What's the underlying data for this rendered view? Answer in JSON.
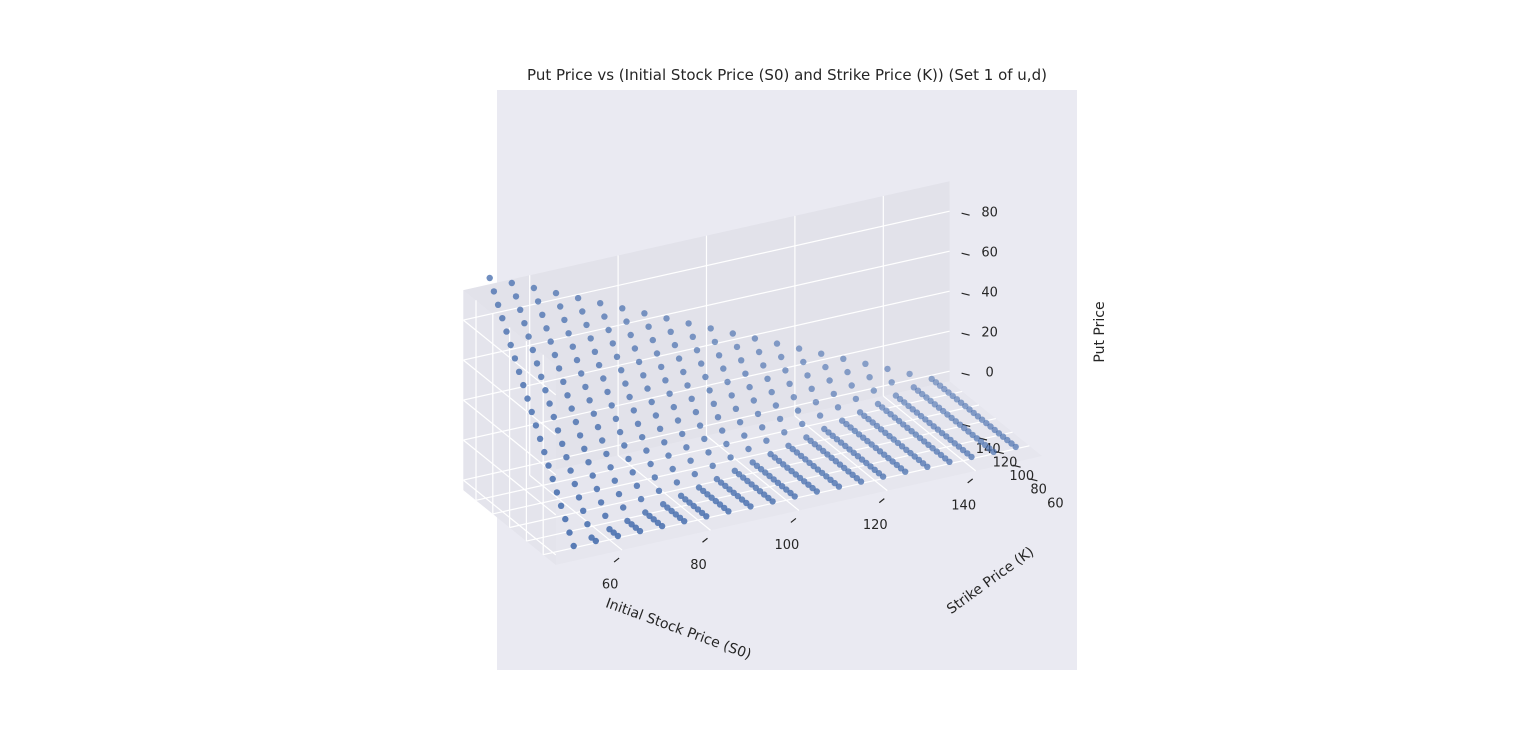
{
  "chart_data": {
    "type": "scatter",
    "title": "Put Price vs (Initial Stock Price (S0) and Strike Price (K)) (Set 1 of u,d)",
    "xlabel": "Initial Stock Price (S0)",
    "ylabel": "Strike Price (K)",
    "zlabel": "Put Price",
    "x_ticks": [
      "60",
      "80",
      "100",
      "120",
      "140"
    ],
    "y_ticks": [
      "60",
      "80",
      "100",
      "120",
      "140"
    ],
    "z_ticks": [
      "0",
      "20",
      "40",
      "60",
      "80"
    ],
    "x_values": [
      50,
      55,
      60,
      65,
      70,
      75,
      80,
      85,
      90,
      95,
      100,
      105,
      110,
      115,
      120,
      125,
      130,
      135,
      140,
      145,
      150
    ],
    "y_values": [
      50,
      55,
      60,
      65,
      70,
      75,
      80,
      85,
      90,
      95,
      100,
      105,
      110,
      115,
      120,
      125,
      130,
      135,
      140,
      145,
      150
    ],
    "z_formula_note": "",
    "xlim": [
      45,
      155
    ],
    "ylim": [
      45,
      155
    ],
    "zlim": [
      -5,
      95
    ],
    "grid": true,
    "marker_color": "#4c72b0",
    "pane_color": "#eaeaf2"
  }
}
